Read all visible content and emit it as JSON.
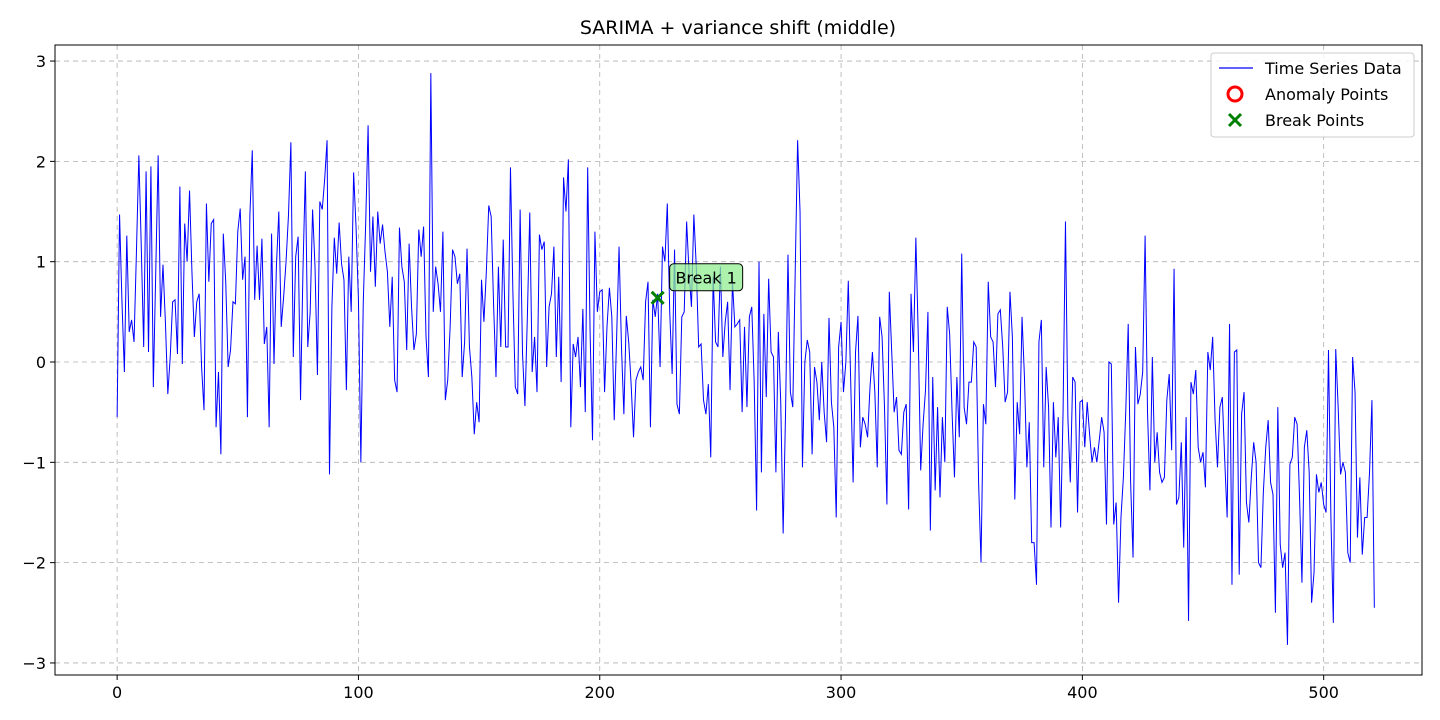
{
  "chart_data": {
    "type": "line",
    "title": "SARIMA + variance shift (middle)",
    "xlabel": "",
    "ylabel": "",
    "xlim": [
      -25.75,
      540.75
    ],
    "ylim": [
      -3.12,
      3.16
    ],
    "xticks": [
      0,
      100,
      200,
      300,
      400,
      500
    ],
    "yticks": [
      -3,
      -2,
      -1,
      0,
      1,
      2,
      3
    ],
    "grid": true,
    "legend_position": "top-right",
    "legend": [
      "Time Series Data",
      "Anomaly Points",
      "Break Points"
    ],
    "colors": {
      "line": "#0000ff",
      "anomaly": "#ff0000",
      "break": "#008000",
      "annotation_bg": "#90ee90"
    },
    "series": [
      {
        "name": "Time Series Data",
        "values": [
          -0.55,
          1.47,
          0.6,
          -0.1,
          1.26,
          0.3,
          0.42,
          0.2,
          1.1,
          2.06,
          1.15,
          0.15,
          1.9,
          0.1,
          1.95,
          -0.25,
          0.9,
          2.06,
          0.45,
          0.97,
          0.4,
          -0.32,
          0.05,
          0.6,
          0.62,
          0.08,
          1.75,
          -0.02,
          1.38,
          1.0,
          1.71,
          0.9,
          0.25,
          0.6,
          0.68,
          -0.05,
          -0.48,
          1.58,
          0.8,
          1.38,
          1.42,
          -0.65,
          -0.1,
          -0.92,
          1.28,
          0.8,
          -0.05,
          0.12,
          0.6,
          0.58,
          1.3,
          1.53,
          0.82,
          1.05,
          -0.55,
          1.45,
          2.11,
          0.62,
          1.16,
          0.62,
          1.23,
          0.18,
          0.35,
          -0.65,
          1.28,
          -0.02,
          0.95,
          1.5,
          0.35,
          0.65,
          1.0,
          1.46,
          2.19,
          0.05,
          1.05,
          1.25,
          -0.38,
          0.9,
          1.9,
          0.15,
          0.5,
          1.52,
          0.95,
          -0.13,
          1.6,
          1.52,
          1.82,
          2.21,
          -1.12,
          0.55,
          1.24,
          0.88,
          1.39,
          0.98,
          0.82,
          -0.28,
          1.05,
          0.5,
          1.89,
          1.35,
          0.62,
          -1.0,
          0.6,
          1.38,
          2.36,
          0.9,
          1.45,
          0.75,
          1.5,
          1.18,
          1.37,
          1.1,
          0.9,
          0.35,
          0.85,
          -0.18,
          -0.3,
          1.34,
          0.95,
          0.8,
          0.12,
          1.18,
          0.55,
          0.12,
          0.28,
          1.32,
          1.05,
          1.35,
          0.25,
          -0.15,
          2.88,
          0.5,
          0.95,
          0.78,
          0.5,
          1.3,
          -0.38,
          -0.18,
          0.35,
          1.12,
          1.05,
          0.78,
          0.88,
          -0.15,
          0.2,
          1.13,
          0.15,
          -0.15,
          -0.72,
          -0.4,
          -0.6,
          0.82,
          0.4,
          0.9,
          1.56,
          1.45,
          0.58,
          -0.15,
          0.95,
          0.15,
          1.22,
          0.15,
          0.15,
          1.94,
          0.7,
          -0.25,
          -0.32,
          1.52,
          0.08,
          -0.44,
          0.45,
          1.49,
          -0.1,
          0.25,
          -0.3,
          1.27,
          1.12,
          1.2,
          -0.05,
          0.55,
          0.68,
          1.15,
          0.05,
          0.85,
          -0.2,
          1.84,
          1.5,
          2.02,
          -0.65,
          0.18,
          0.05,
          0.25,
          -0.25,
          0.53,
          -0.5,
          1.94,
          0.3,
          -0.78,
          1.3,
          0.5,
          0.7,
          0.72,
          -0.3,
          0.35,
          0.74,
          0.45,
          -0.58,
          0.25,
          1.15,
          0.15,
          -0.52,
          0.46,
          0.2,
          -0.22,
          -0.75,
          -0.18,
          -0.1,
          -0.05,
          -0.18,
          0.6,
          0.8,
          -0.65,
          0.62,
          0.45,
          0.68,
          -0.05,
          1.15,
          1.0,
          1.58,
          0.5,
          -0.12,
          1.12,
          -0.42,
          -0.52,
          0.45,
          0.5,
          1.4,
          0.9,
          0.55,
          1.47,
          0.95,
          0.15,
          0.18,
          -0.38,
          -0.52,
          -0.22,
          -0.95,
          0.85,
          0.2,
          0.15,
          0.95,
          0.05,
          0.4,
          0.6,
          -0.28,
          0.8,
          0.35,
          0.38,
          0.42,
          -0.5,
          0.35,
          -0.45,
          0.45,
          0.55,
          -0.2,
          -1.48,
          1.0,
          -1.1,
          0.48,
          -0.35,
          0.83,
          0.1,
          0.05,
          -1.1,
          0.3,
          -0.4,
          -1.71,
          -0.5,
          1.07,
          -0.3,
          -0.45,
          0.9,
          2.21,
          1.5,
          -1.05,
          0.0,
          0.22,
          0.1,
          -0.92,
          -0.05,
          -0.2,
          -0.58,
          0.0,
          -0.5,
          -0.8,
          0.44,
          -0.4,
          -0.65,
          -1.55,
          0.15,
          0.4,
          -0.3,
          0.0,
          0.81,
          -0.2,
          -1.2,
          0.1,
          0.46,
          -0.85,
          -0.55,
          -0.62,
          -0.75,
          -0.25,
          0.1,
          -0.3,
          -1.05,
          0.45,
          0.25,
          -0.45,
          -1.42,
          0.7,
          0.1,
          -0.5,
          -0.35,
          -0.88,
          -0.92,
          -0.5,
          -0.42,
          -1.47,
          0.68,
          0.1,
          1.24,
          0.25,
          -1.08,
          -0.62,
          -0.28,
          0.5,
          -1.68,
          -0.15,
          -1.28,
          -0.45,
          -1.35,
          -0.55,
          -1.0,
          0.55,
          0.28,
          -0.5,
          -1.15,
          -0.15,
          -0.75,
          1.08,
          -0.45,
          -0.62,
          -0.2,
          -0.2,
          0.2,
          0.15,
          -1.2,
          -2.0,
          -0.42,
          -0.62,
          0.8,
          0.25,
          0.2,
          -0.25,
          0.48,
          0.52,
          0.15,
          -0.4,
          -0.3,
          0.7,
          0.25,
          -1.37,
          -0.4,
          -0.72,
          0.45,
          -0.15,
          -1.05,
          -0.6,
          -1.8,
          -1.8,
          -2.22,
          0.2,
          0.42,
          -1.05,
          -0.05,
          -0.45,
          -1.65,
          -0.4,
          -0.95,
          -0.55,
          -1.65,
          -0.5,
          1.4,
          -0.55,
          -1.2,
          -0.15,
          -0.2,
          -1.5,
          -0.4,
          -0.38,
          -0.85,
          -0.4,
          -0.72,
          -1.0,
          -0.85,
          -1.0,
          -0.78,
          -0.55,
          -0.7,
          -1.62,
          0.0,
          -0.02,
          -1.62,
          -1.4,
          -2.4,
          -1.55,
          -1.15,
          -0.48,
          0.38,
          -1.2,
          -1.95,
          0.15,
          -0.42,
          -0.32,
          -0.1,
          1.26,
          -0.5,
          -1.28,
          0.05,
          -1.0,
          -0.7,
          -1.1,
          -1.2,
          -1.15,
          -0.38,
          -0.12,
          -0.88,
          0.93,
          -1.42,
          -1.35,
          -0.8,
          -1.85,
          -0.55,
          -2.58,
          -0.2,
          -0.32,
          -0.08,
          -0.85,
          -1.0,
          -0.9,
          -1.25,
          0.1,
          -0.08,
          0.25,
          -0.58,
          -1.05,
          -0.45,
          -0.35,
          -0.98,
          -1.55,
          0.38,
          -2.22,
          0.1,
          0.12,
          -2.12,
          -0.52,
          -0.3,
          -1.4,
          -1.6,
          -1.15,
          -0.8,
          -1.0,
          -2.0,
          -2.05,
          -1.3,
          -0.85,
          -0.58,
          -1.2,
          -1.32,
          -2.5,
          -0.45,
          -1.82,
          -2.05,
          -1.9,
          -2.82,
          -1.02,
          -0.95,
          -0.55,
          -0.62,
          -1.35,
          -2.2,
          -0.85,
          -0.68,
          -1.1,
          -2.4,
          -2.1,
          -1.12,
          -1.3,
          -1.2,
          -1.42,
          -1.5,
          0.12,
          -1.55,
          -2.6,
          0.13,
          -0.45,
          -1.12,
          -1.0,
          -1.1,
          -1.9,
          -2.0,
          0.05,
          -0.3,
          -1.75,
          -1.15,
          -1.92,
          -1.55,
          -1.55,
          -1.1,
          -0.38,
          -2.45
        ]
      },
      {
        "name": "Anomaly Points",
        "points": []
      },
      {
        "name": "Break Points",
        "points": [
          {
            "x": 224,
            "y": 0.64
          }
        ]
      }
    ],
    "annotations": [
      {
        "text": "Break 1",
        "x": 224,
        "y": 0.64
      }
    ]
  }
}
